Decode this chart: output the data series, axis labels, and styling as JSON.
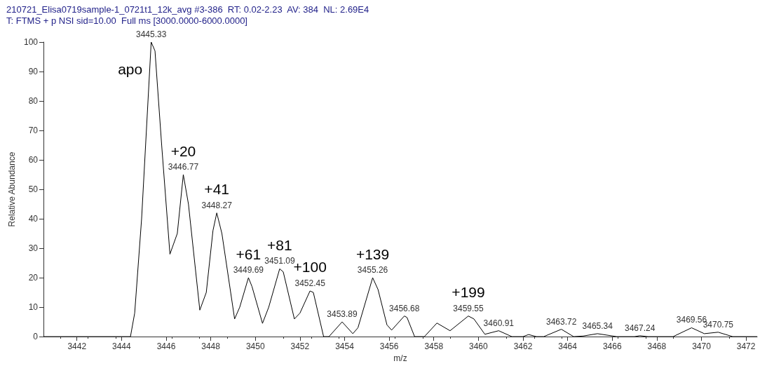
{
  "chart_data": {
    "type": "line",
    "title": "210721_Elisa0719sample-1_0721t1_12k_avg #3-386  RT: 0.02-2.23  AV: 384  NL: 2.69E4",
    "subtitle": "T: FTMS + p NSI sid=10.00  Full ms [3000.0000-6000.0000]",
    "xlabel": "m/z",
    "ylabel": "Relative Abundance",
    "x": [
      3440.5,
      3444.4,
      3444.59,
      3444.9,
      3445.33,
      3445.5,
      3445.8,
      3446.17,
      3446.5,
      3446.77,
      3447.0,
      3447.51,
      3447.8,
      3448.1,
      3448.27,
      3448.5,
      3449.07,
      3449.3,
      3449.69,
      3449.85,
      3450.32,
      3450.6,
      3451.09,
      3451.25,
      3451.75,
      3452.0,
      3452.45,
      3452.6,
      3453.06,
      3453.3,
      3453.89,
      3454.37,
      3454.6,
      3455.26,
      3455.5,
      3455.9,
      3456.11,
      3456.68,
      3456.8,
      3457.14,
      3457.58,
      3458.14,
      3458.73,
      3459.55,
      3459.8,
      3460.29,
      3460.91,
      3461.5,
      3462.0,
      3462.25,
      3462.6,
      3462.93,
      3463.72,
      3464.27,
      3464.7,
      3465.34,
      3466.2,
      3467.0,
      3467.24,
      3467.6,
      3468.73,
      3469.56,
      3470.13,
      3470.75,
      3471.4,
      3472.5
    ],
    "series": [
      {
        "color": "#000000",
        "values": [
          0,
          0,
          8,
          40,
          100,
          97,
          65,
          28,
          35,
          55,
          45,
          9,
          15,
          36,
          42,
          35,
          6,
          10,
          20,
          17,
          4.5,
          10,
          23,
          22,
          6,
          8,
          15.5,
          15,
          0,
          0,
          5,
          1,
          3,
          20,
          16,
          4,
          2.2,
          7,
          6.5,
          0,
          0,
          4.6,
          2,
          7,
          6,
          0.8,
          2,
          0,
          0,
          0.7,
          0,
          0,
          2.5,
          0,
          0.2,
          1,
          0,
          0,
          0.3,
          0,
          0,
          3,
          1,
          1.5,
          0,
          0
        ],
        "line_style": "solid"
      }
    ],
    "xlim": [
      3440.5,
      3472.5
    ],
    "xticks": [
      3442,
      3444,
      3446,
      3448,
      3450,
      3452,
      3454,
      3456,
      3458,
      3460,
      3462,
      3464,
      3466,
      3468,
      3470,
      3472
    ],
    "ylim": [
      0,
      100
    ],
    "yticks": [
      0,
      10,
      20,
      30,
      40,
      50,
      60,
      70,
      80,
      90,
      100
    ],
    "marker": "none",
    "grid": false,
    "annotations": [
      {
        "text": "3445.33",
        "x": 3445.33,
        "y": 100
      },
      {
        "text": "apo",
        "x": 3445.33,
        "y": 100
      },
      {
        "text": "3446.77",
        "x": 3446.77,
        "y": 55
      },
      {
        "text": "+20",
        "x": 3446.77,
        "y": 55
      },
      {
        "text": "3448.27",
        "x": 3448.27,
        "y": 42
      },
      {
        "text": "+41",
        "x": 3448.27,
        "y": 42
      },
      {
        "text": "3449.69",
        "x": 3449.69,
        "y": 20
      },
      {
        "text": "+61",
        "x": 3449.69,
        "y": 20
      },
      {
        "text": "3451.09",
        "x": 3451.09,
        "y": 23
      },
      {
        "text": "+81",
        "x": 3451.09,
        "y": 23
      },
      {
        "text": "3452.45",
        "x": 3452.45,
        "y": 15.5
      },
      {
        "text": "+100",
        "x": 3452.45,
        "y": 15.5
      },
      {
        "text": "3453.89",
        "x": 3453.89,
        "y": 5
      },
      {
        "text": "3455.26",
        "x": 3455.26,
        "y": 20
      },
      {
        "text": "+139",
        "x": 3455.26,
        "y": 20
      },
      {
        "text": "3456.68",
        "x": 3456.68,
        "y": 7
      },
      {
        "text": "3459.55",
        "x": 3459.55,
        "y": 7
      },
      {
        "text": "+199",
        "x": 3459.55,
        "y": 7
      },
      {
        "text": "3460.91",
        "x": 3460.91,
        "y": 2
      },
      {
        "text": "3463.72",
        "x": 3463.72,
        "y": 2.5
      },
      {
        "text": "3465.34",
        "x": 3465.34,
        "y": 1
      },
      {
        "text": "3467.24",
        "x": 3467.24,
        "y": 0.3
      },
      {
        "text": "3469.56",
        "x": 3469.56,
        "y": 3
      },
      {
        "text": "3470.75",
        "x": 3470.75,
        "y": 1.5
      }
    ]
  }
}
